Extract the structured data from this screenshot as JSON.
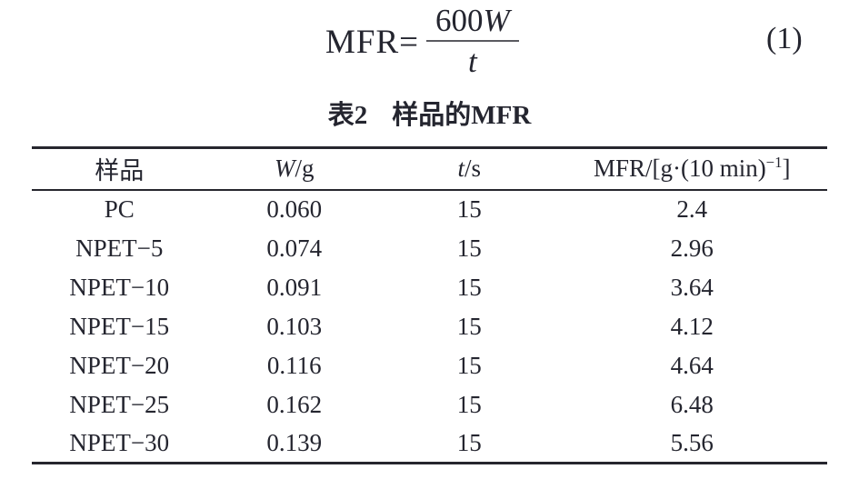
{
  "formula": {
    "lhs": "MFR=",
    "numerator_coeff": "600",
    "numerator_symbol": "W",
    "denominator_symbol": "t",
    "equation_number": "(1)"
  },
  "table": {
    "title_label": "表2",
    "title_caption": "样品的MFR",
    "headers": {
      "col1": "样品",
      "col2_symbol": "W",
      "col2_unit": "/g",
      "col3_symbol": "t",
      "col3_unit": "/s",
      "col4_prefix": "MFR/[g·(10 min)",
      "col4_sup": "−1",
      "col4_suffix": "]"
    },
    "rows": [
      [
        "PC",
        "0.060",
        "15",
        "2.4"
      ],
      [
        "NPET−5",
        "0.074",
        "15",
        "2.96"
      ],
      [
        "NPET−10",
        "0.091",
        "15",
        "3.64"
      ],
      [
        "NPET−15",
        "0.103",
        "15",
        "4.12"
      ],
      [
        "NPET−20",
        "0.116",
        "15",
        "4.64"
      ],
      [
        "NPET−25",
        "0.162",
        "15",
        "6.48"
      ],
      [
        "NPET−30",
        "0.139",
        "15",
        "5.56"
      ]
    ]
  },
  "colors": {
    "text": "#24252f",
    "rule": "#26262e",
    "fraction_bar": "#5a5a60",
    "background": "#ffffff"
  }
}
